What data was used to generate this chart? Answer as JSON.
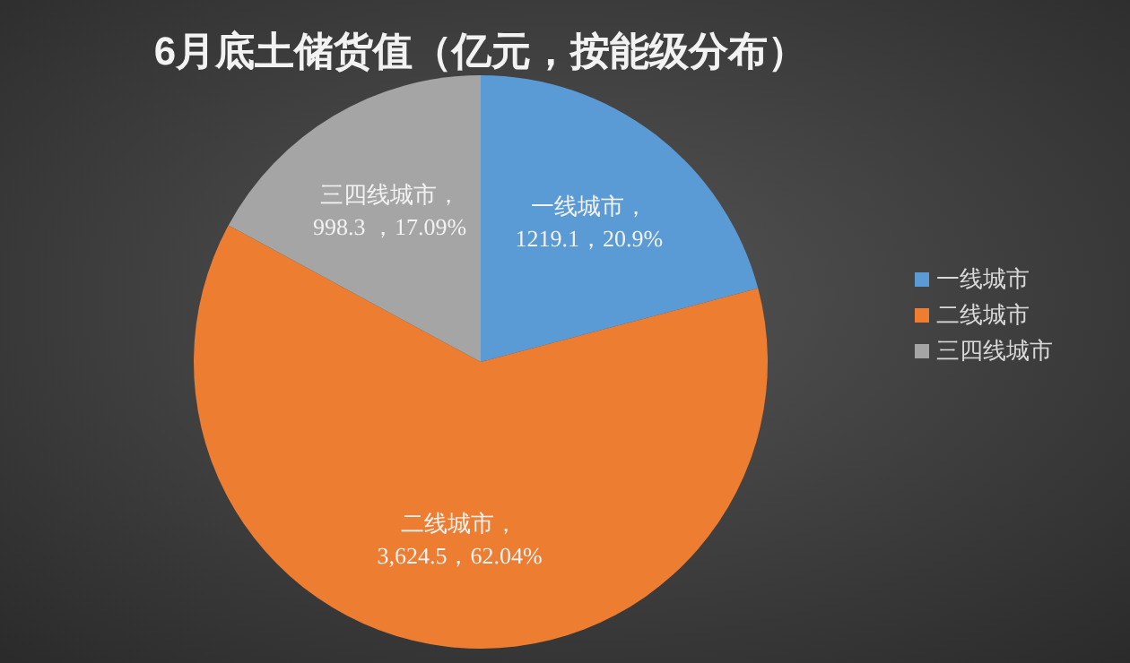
{
  "chart_data": {
    "type": "pie",
    "title": "6月底土储货值（亿元，按能级分布）",
    "categories": [
      "一线城市",
      "二线城市",
      "三四线城市"
    ],
    "values": [
      1219.1,
      3624.5,
      998.3
    ],
    "colors": [
      "#5b9bd5",
      "#ed7d31",
      "#a5a5a5"
    ],
    "value_labels": [
      "一线城市，\n1219.1，20.9%",
      "二线城市，\n3,624.5，62.04%",
      "三四线城市，\n998.3 ，17.09%"
    ],
    "legend": "right"
  }
}
